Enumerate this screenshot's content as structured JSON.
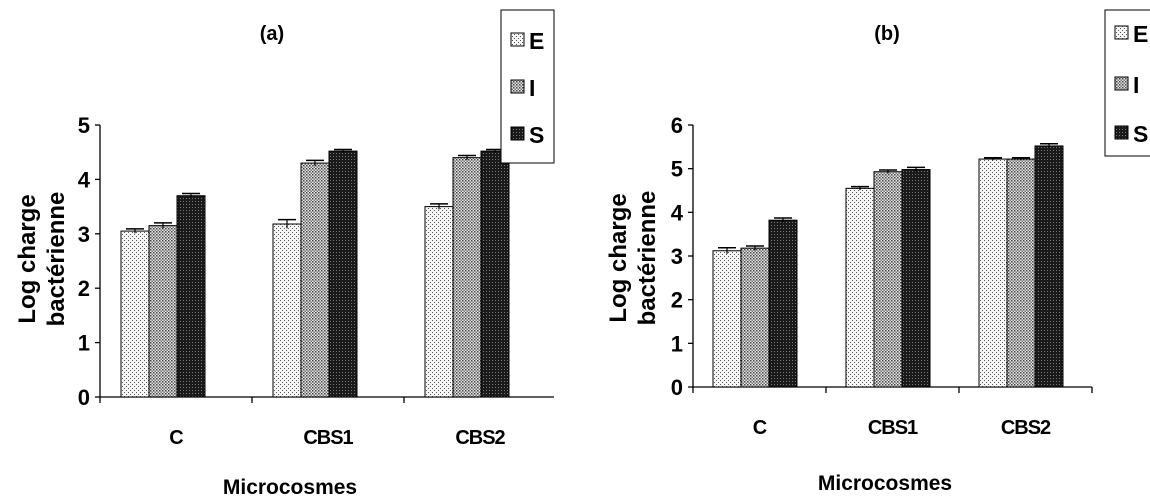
{
  "chart_data": [
    {
      "type": "bar",
      "title": "(a)",
      "xlabel": "Microcosmes",
      "ylabel_lines": [
        "Log charge",
        "bactérienne"
      ],
      "categories": [
        "C",
        "CBS1",
        "CBS2"
      ],
      "ylim": [
        0,
        5
      ],
      "yticks": [
        "0",
        "1",
        "2",
        "3",
        "4",
        "5"
      ],
      "grid": false,
      "legend_position": "top-right",
      "series": [
        {
          "name": "E",
          "values": [
            3.05,
            3.18,
            3.5
          ],
          "errors": [
            0.04,
            0.08,
            0.05
          ]
        },
        {
          "name": "I",
          "values": [
            3.15,
            4.3,
            4.4
          ],
          "errors": [
            0.05,
            0.05,
            0.04
          ]
        },
        {
          "name": "S",
          "values": [
            3.7,
            4.52,
            4.52
          ],
          "errors": [
            0.04,
            0.03,
            0.03
          ]
        }
      ]
    },
    {
      "type": "bar",
      "title": "(b)",
      "xlabel": "Microcosmes",
      "ylabel_lines": [
        "Log  charge",
        "bactérienne"
      ],
      "categories": [
        "C",
        "CBS1",
        "CBS2"
      ],
      "ylim": [
        0,
        6
      ],
      "yticks": [
        "0",
        "1",
        "2",
        "3",
        "4",
        "5",
        "6"
      ],
      "grid": false,
      "legend_position": "top-right",
      "series": [
        {
          "name": "E",
          "values": [
            3.12,
            4.55,
            5.22
          ],
          "errors": [
            0.07,
            0.04,
            0.03
          ]
        },
        {
          "name": "I",
          "values": [
            3.18,
            4.93,
            5.22
          ],
          "errors": [
            0.05,
            0.04,
            0.03
          ]
        },
        {
          "name": "S",
          "values": [
            3.82,
            4.98,
            5.52
          ],
          "errors": [
            0.05,
            0.05,
            0.05
          ]
        }
      ]
    }
  ],
  "colors": {
    "E_fill": "#f4f4f4",
    "I_fill": "#bdbdbd",
    "S_fill": "#2b2b2b",
    "axis": "#000000"
  }
}
